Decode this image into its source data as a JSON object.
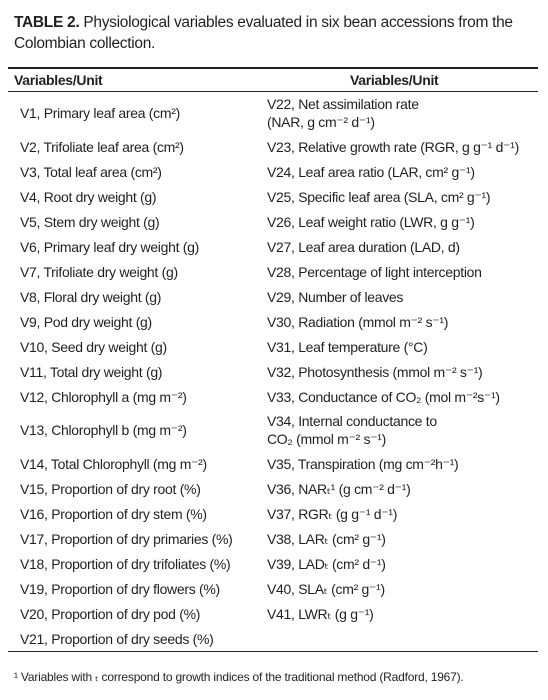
{
  "header": {
    "label": "TABLE 2.",
    "title": "Physiological variables evaluated in six bean accessions from the Colombian collection."
  },
  "table": {
    "columns": [
      "Variables/Unit",
      "Variables/Unit"
    ],
    "rows": [
      [
        "V1, Primary leaf area (cm²)",
        "V22, Net assimilation rate\n(NAR, g cm⁻² d⁻¹)"
      ],
      [
        "V2, Trifoliate leaf area (cm²)",
        "V23, Relative growth rate (RGR, g g⁻¹ d⁻¹)"
      ],
      [
        "V3, Total leaf area (cm²)",
        "V24, Leaf area ratio (LAR, cm² g⁻¹)"
      ],
      [
        "V4, Root dry weight (g)",
        "V25, Specific leaf area (SLA, cm² g⁻¹)"
      ],
      [
        "V5, Stem dry weight (g)",
        "V26, Leaf weight ratio (LWR, g g⁻¹)"
      ],
      [
        "V6, Primary leaf dry weight (g)",
        "V27, Leaf area duration (LAD, d)"
      ],
      [
        "V7, Trifoliate dry weight (g)",
        "V28, Percentage of light interception"
      ],
      [
        "V8, Floral dry weight (g)",
        "V29, Number of leaves"
      ],
      [
        "V9, Pod dry weight (g)",
        "V30, Radiation (mmol m⁻² s⁻¹)"
      ],
      [
        "V10, Seed dry weight (g)",
        "V31, Leaf temperature (°C)"
      ],
      [
        "V11, Total dry weight (g)",
        "V32, Photosynthesis (mmol m⁻² s⁻¹)"
      ],
      [
        "V12, Chlorophyll a (mg m⁻²)",
        "V33, Conductance of CO₂ (mol m⁻²s⁻¹)"
      ],
      [
        "V13, Chlorophyll b (mg m⁻²)",
        "V34, Internal conductance to\nCO₂ (mmol m⁻² s⁻¹)"
      ],
      [
        "V14, Total Chlorophyll (mg m⁻²)",
        "V35, Transpiration (mg cm⁻²h⁻¹)"
      ],
      [
        "V15, Proportion of dry root (%)",
        "V36, NARₜ¹ (g cm⁻² d⁻¹)"
      ],
      [
        "V16, Proportion of dry stem (%)",
        "V37, RGRₜ (g g⁻¹ d⁻¹)"
      ],
      [
        "V17, Proportion of dry primaries (%)",
        "V38, LARₜ (cm² g⁻¹)"
      ],
      [
        "V18, Proportion of dry trifoliates (%)",
        "V39, LADₜ (cm² d⁻¹)"
      ],
      [
        "V19, Proportion of dry flowers (%)",
        "V40, SLAₜ (cm² g⁻¹)"
      ],
      [
        "V20, Proportion of dry pod (%)",
        "V41, LWRₜ (g g⁻¹)"
      ],
      [
        "V21, Proportion of dry seeds (%)",
        null
      ]
    ]
  },
  "footnote": "¹ Variables with ₜ correspond to growth indices of the traditional method (Radford, 1967)."
}
